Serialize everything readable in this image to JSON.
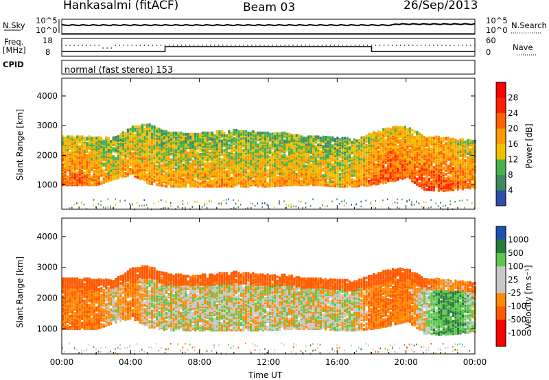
{
  "header": {
    "station": "Hankasalmi (fitACF)",
    "beam": "Beam 03",
    "date": "26/Sep/2013"
  },
  "top_panels": {
    "nsky_label": "N.Sky",
    "nsky_ticks": [
      "10^5",
      "10^0"
    ],
    "nsearch_label": "N.Search",
    "nsearch_ticks": [
      "10^5",
      "10^0"
    ],
    "freq_label_1": "Freq.",
    "freq_label_2": "[MHz]",
    "freq_ticks": [
      "18",
      "8"
    ],
    "nave_label": "Nave",
    "nave_ticks": [
      "60",
      "0"
    ],
    "cpid_label": "CPID",
    "cpid_text": "normal (fast stereo) 153"
  },
  "colors": {
    "power_scale": [
      "#0000ff",
      "#2e4fa8",
      "#3e8a5e",
      "#49b04b",
      "#f0c000",
      "#ff9a00",
      "#ff6000",
      "#ff2000",
      "#ff0000"
    ],
    "velocity_scale": [
      "#2050b0",
      "#2a7a3c",
      "#5ac84a",
      "#c8c8c8",
      "#c8c8c8",
      "#ff8a00",
      "#ff5a00",
      "#ff0000"
    ]
  },
  "chart_data": [
    {
      "type": "heatmap",
      "title": "Power",
      "ylabel": "Slant Range [km]",
      "colorbar_label": "Power [dB]",
      "ylim": [
        180,
        4600
      ],
      "yticks": [
        "1000",
        "2000",
        "3000",
        "4000"
      ],
      "ytick_values": [
        1000,
        2000,
        3000,
        4000
      ],
      "colorbar_ticks": [
        "4",
        "8",
        "12",
        "16",
        "20",
        "24",
        "28"
      ],
      "x_hours": [
        0,
        1,
        2,
        3,
        4,
        5,
        6,
        7,
        8,
        9,
        10,
        11,
        12,
        13,
        14,
        15,
        16,
        17,
        18,
        19,
        20,
        21,
        22,
        23,
        24
      ],
      "echo_lower_km": [
        1050,
        1050,
        1050,
        1250,
        1400,
        1100,
        1000,
        1000,
        1000,
        1000,
        1000,
        1000,
        1000,
        1050,
        1050,
        1050,
        1000,
        1000,
        1050,
        1150,
        1300,
        900,
        850,
        900,
        950
      ],
      "echo_upper_km": [
        2700,
        2700,
        2650,
        2650,
        3000,
        3100,
        2850,
        2800,
        2800,
        2850,
        2900,
        2850,
        2800,
        2800,
        2700,
        2700,
        2650,
        2600,
        2800,
        3000,
        3000,
        2700,
        2650,
        2600,
        2550
      ],
      "dominant_power_db": [
        26,
        26,
        24,
        20,
        24,
        22,
        22,
        22,
        22,
        22,
        22,
        22,
        22,
        22,
        22,
        22,
        20,
        22,
        26,
        28,
        26,
        28,
        28,
        26,
        24
      ]
    },
    {
      "type": "heatmap",
      "title": "Velocity",
      "ylabel": "Slant Range [km]",
      "colorbar_label": "Velocity [m s⁻¹]",
      "ylim": [
        180,
        4600
      ],
      "yticks": [
        "1000",
        "2000",
        "3000",
        "4000"
      ],
      "ytick_values": [
        1000,
        2000,
        3000,
        4000
      ],
      "colorbar_ticks": [
        "1000",
        "500",
        "100",
        "25",
        "-25",
        "-100",
        "-500",
        "-1000"
      ],
      "x_hours": [
        0,
        1,
        2,
        3,
        4,
        5,
        6,
        7,
        8,
        9,
        10,
        11,
        12,
        13,
        14,
        15,
        16,
        17,
        18,
        19,
        20,
        21,
        22,
        23,
        24
      ],
      "echo_lower_km": [
        1050,
        1050,
        1050,
        1250,
        1400,
        1100,
        1000,
        1000,
        1000,
        1000,
        1000,
        1000,
        1000,
        1050,
        1050,
        1050,
        1000,
        1000,
        1050,
        1150,
        1300,
        900,
        850,
        900,
        950
      ],
      "echo_upper_km": [
        2700,
        2700,
        2650,
        2650,
        3000,
        3100,
        2850,
        2800,
        2800,
        2850,
        2900,
        2850,
        2800,
        2800,
        2700,
        2700,
        2650,
        2600,
        2800,
        3000,
        3000,
        2700,
        2650,
        2600,
        2550
      ],
      "dominant_velocity_ms": [
        -100,
        -100,
        -100,
        0,
        -100,
        0,
        0,
        0,
        0,
        0,
        0,
        0,
        0,
        0,
        0,
        0,
        0,
        0,
        -100,
        -100,
        -100,
        0,
        100,
        100,
        0
      ]
    }
  ],
  "xaxis": {
    "label": "Time UT",
    "ticks": [
      "00:00",
      "04:00",
      "08:00",
      "12:00",
      "16:00",
      "20:00",
      "00:00"
    ],
    "tick_hours": [
      0,
      4,
      8,
      12,
      16,
      20,
      24
    ]
  }
}
